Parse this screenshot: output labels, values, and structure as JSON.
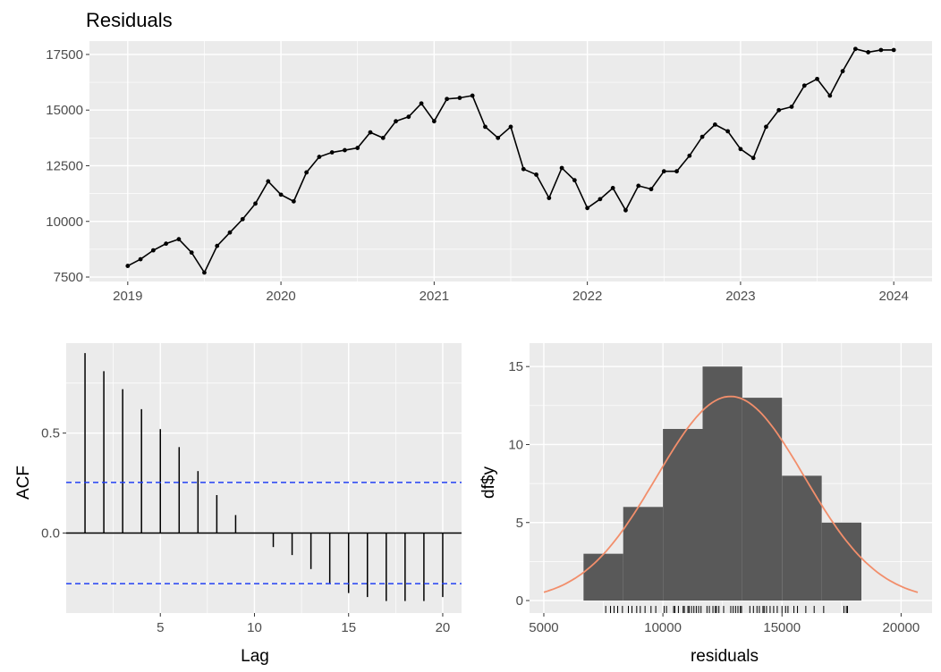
{
  "chart_data": [
    {
      "type": "line",
      "title": "Residuals",
      "xlabel": "",
      "ylabel": "",
      "x_ticks": [
        "2019",
        "2020",
        "2021",
        "2022",
        "2023",
        "2024"
      ],
      "y_ticks": [
        "7500",
        "10000",
        "12500",
        "15000",
        "17500"
      ],
      "xlim": [
        2018.75,
        2024.25
      ],
      "ylim": [
        7300,
        18100
      ],
      "grid": true,
      "x_start": "2019-01",
      "x_end": "2024-01",
      "y": [
        8000,
        8300,
        8700,
        9000,
        9200,
        8600,
        7700,
        8900,
        9500,
        10100,
        10800,
        11800,
        11200,
        10900,
        12200,
        12900,
        13100,
        13200,
        13300,
        14000,
        13750,
        14500,
        14700,
        15300,
        14500,
        15500,
        15550,
        15650,
        14250,
        13750,
        14250,
        12350,
        12100,
        11050,
        12400,
        11850,
        10600,
        11000,
        11500,
        10500,
        11600,
        11450,
        12250,
        12250,
        12950,
        13800,
        14350,
        14050,
        13250,
        12850,
        14250,
        15000,
        15150,
        16100,
        16400,
        15650,
        16750,
        17750,
        17600,
        17700,
        17700
      ]
    },
    {
      "type": "bar",
      "title": "",
      "xlabel": "Lag",
      "ylabel": "ACF",
      "x_ticks": [
        "5",
        "10",
        "15",
        "20"
      ],
      "y_ticks": [
        "0.0",
        "0.5"
      ],
      "xlim": [
        0,
        21
      ],
      "ylim": [
        -0.4,
        0.95
      ],
      "grid": true,
      "lags": [
        1,
        2,
        3,
        4,
        5,
        6,
        7,
        8,
        9,
        10,
        11,
        12,
        13,
        14,
        15,
        16,
        17,
        18,
        19,
        20
      ],
      "values": [
        0.9,
        0.81,
        0.72,
        0.62,
        0.52,
        0.43,
        0.31,
        0.19,
        0.09,
        0.0,
        -0.07,
        -0.11,
        -0.18,
        -0.25,
        -0.3,
        -0.32,
        -0.34,
        -0.34,
        -0.34,
        -0.32
      ],
      "ci_upper": 0.253,
      "ci_lower": -0.253,
      "ci_color": "#1f3cf0"
    },
    {
      "type": "bar",
      "title": "",
      "xlabel": "residuals",
      "ylabel": "df$y",
      "x_ticks": [
        "5000",
        "10000",
        "15000",
        "20000"
      ],
      "y_ticks": [
        "0",
        "5",
        "10",
        "15"
      ],
      "xlim": [
        4400,
        21300
      ],
      "ylim": [
        -0.8,
        16.5
      ],
      "grid": true,
      "bin_edges": [
        6667,
        8333,
        10000,
        11667,
        13333,
        15000,
        16667,
        18333
      ],
      "counts": [
        3,
        6,
        11,
        15,
        13,
        8,
        5
      ],
      "bar_color": "#595959",
      "density_curve": {
        "color": "#f28e6b",
        "mean": 12840,
        "sd": 3100,
        "n": 61,
        "binwidth": 1667,
        "x_from": 5000,
        "x_to": 20700
      },
      "rug": [
        7600,
        7800,
        7950,
        8100,
        8300,
        8550,
        8700,
        8900,
        9050,
        9250,
        9500,
        9700,
        10050,
        10150,
        10450,
        10500,
        10650,
        10850,
        10900,
        11050,
        11100,
        11200,
        11300,
        11400,
        11500,
        11600,
        11850,
        11950,
        12100,
        12200,
        12250,
        12350,
        12550,
        12850,
        12950,
        13050,
        13150,
        13250,
        13300,
        13650,
        13800,
        13950,
        14050,
        14200,
        14250,
        14350,
        14500,
        14650,
        14800,
        15000,
        15150,
        15250,
        15500,
        15650,
        16000,
        16350,
        16750,
        17600,
        17700,
        17750
      ]
    }
  ]
}
